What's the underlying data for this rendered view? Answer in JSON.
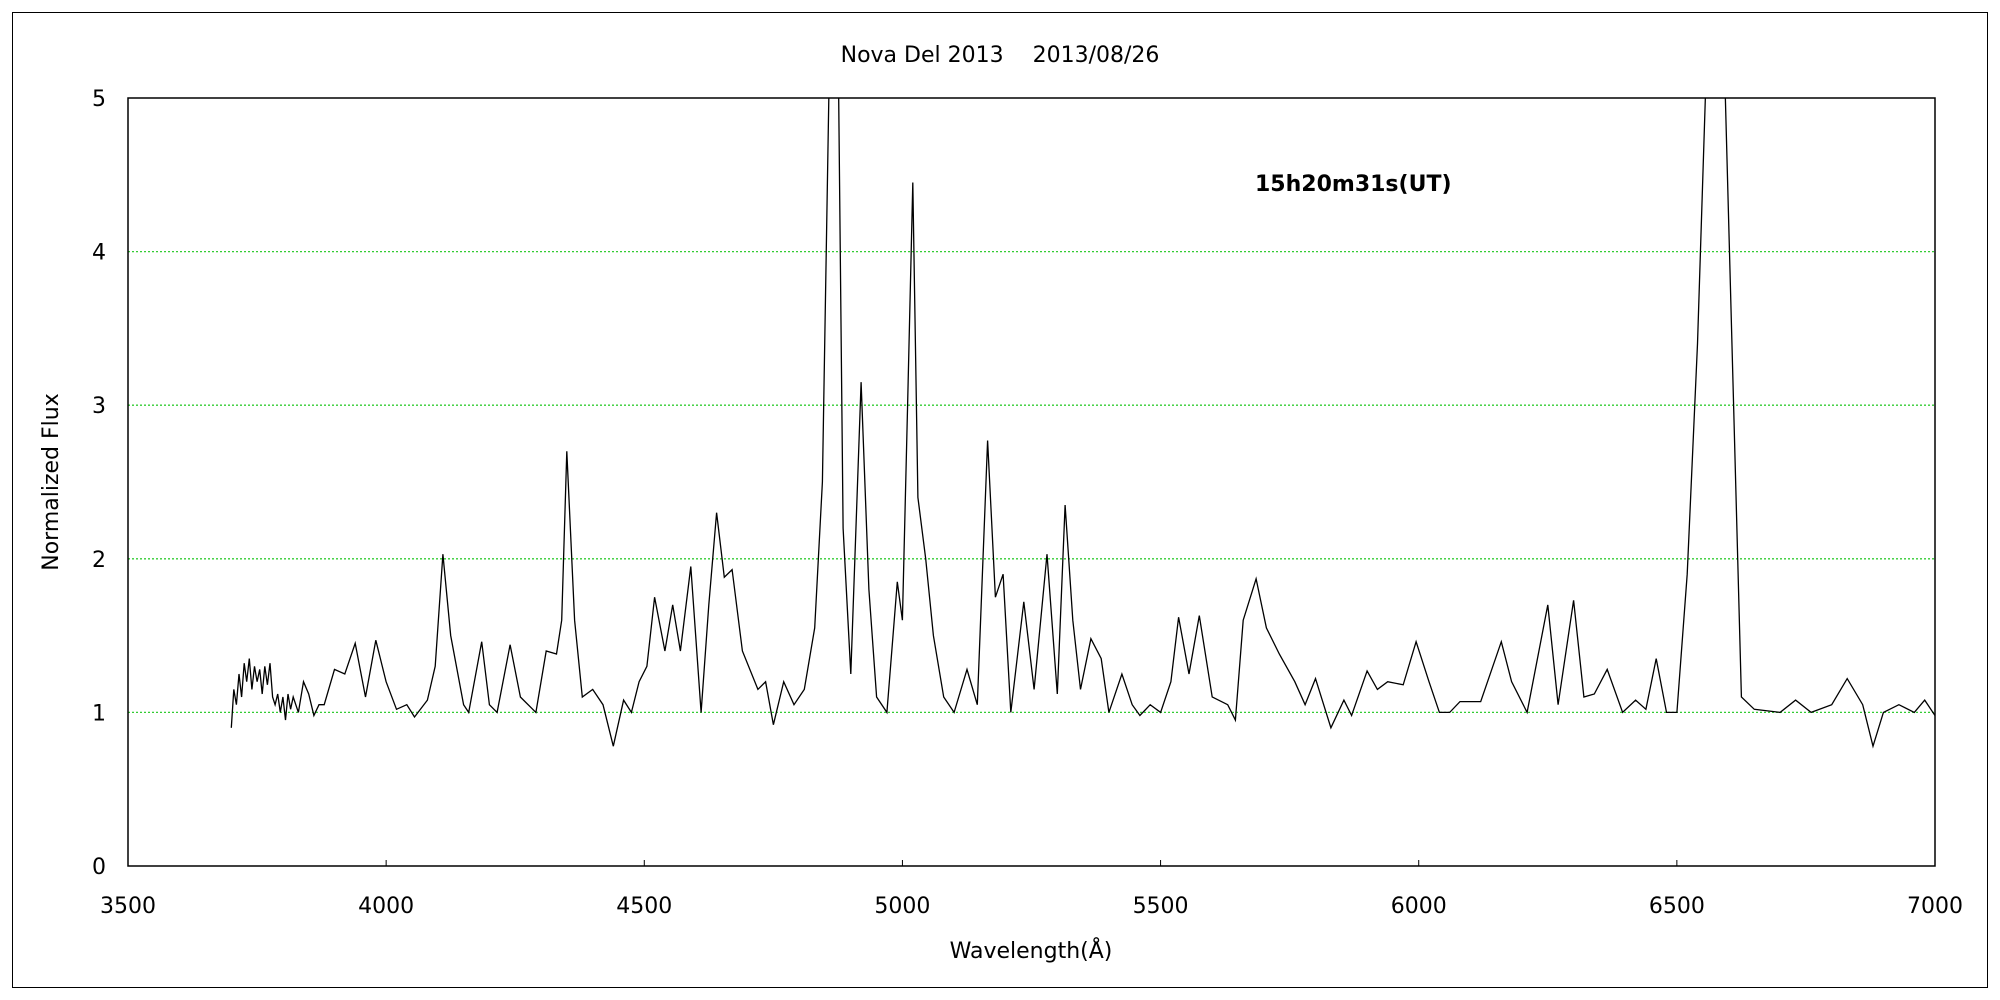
{
  "chart_data": {
    "type": "line",
    "title": "Nova Del 2013　 2013/08/26",
    "annotation": "15h20m31s(UT)",
    "xlabel": "Wavelength(Å)",
    "ylabel": "Normalized Flux",
    "xlim": [
      3500,
      7000
    ],
    "ylim": [
      0,
      5
    ],
    "xticks": [
      3500,
      4000,
      4500,
      5000,
      5500,
      6000,
      6500,
      7000
    ],
    "yticks": [
      0,
      1,
      2,
      3,
      4,
      5
    ],
    "grid": {
      "y": true,
      "x": false,
      "style": "dotted",
      "color": "#33cc33"
    },
    "line_color": "#000000",
    "series": [
      {
        "x": [
          3700,
          3705,
          3710,
          3715,
          3720,
          3725,
          3730,
          3735,
          3740,
          3745,
          3750,
          3755,
          3760,
          3765,
          3770,
          3775,
          3780,
          3785,
          3790,
          3795,
          3800,
          3805,
          3810,
          3815,
          3820,
          3830,
          3840,
          3850,
          3860,
          3870,
          3880,
          3900,
          3920,
          3940,
          3960,
          3980,
          4000,
          4020,
          4040,
          4055,
          4080,
          4095,
          4110,
          4125,
          4150,
          4160,
          4185,
          4200,
          4215,
          4240,
          4260,
          4290,
          4310,
          4330,
          4340,
          4350,
          4365,
          4380,
          4400,
          4420,
          4440,
          4460,
          4475,
          4490,
          4505,
          4520,
          4540,
          4555,
          4570,
          4590,
          4610,
          4625,
          4640,
          4655,
          4670,
          4690,
          4720,
          4735,
          4750,
          4770,
          4790,
          4810,
          4830,
          4845,
          4860,
          4875,
          4885,
          4900,
          4920,
          4935,
          4950,
          4970,
          4990,
          5000,
          5010,
          5020,
          5030,
          5045,
          5060,
          5080,
          5100,
          5125,
          5145,
          5165,
          5180,
          5195,
          5210,
          5235,
          5255,
          5280,
          5300,
          5315,
          5330,
          5345,
          5365,
          5385,
          5400,
          5425,
          5445,
          5460,
          5480,
          5500,
          5520,
          5535,
          5555,
          5575,
          5600,
          5630,
          5645,
          5660,
          5685,
          5705,
          5730,
          5760,
          5780,
          5800,
          5830,
          5855,
          5870,
          5900,
          5920,
          5940,
          5970,
          5995,
          6020,
          6040,
          6060,
          6080,
          6120,
          6160,
          6180,
          6210,
          6250,
          6270,
          6300,
          6320,
          6340,
          6365,
          6395,
          6420,
          6440,
          6460,
          6480,
          6500,
          6520,
          6540,
          6560,
          6590,
          6610,
          6625,
          6650,
          6700,
          6730,
          6760,
          6800,
          6830,
          6860,
          6880,
          6900,
          6930,
          6960,
          6980,
          7000
        ],
        "y": [
          0.9,
          1.15,
          1.05,
          1.25,
          1.1,
          1.32,
          1.2,
          1.35,
          1.15,
          1.3,
          1.2,
          1.28,
          1.12,
          1.3,
          1.18,
          1.32,
          1.1,
          1.05,
          1.12,
          1.0,
          1.1,
          0.95,
          1.12,
          1.02,
          1.1,
          1.0,
          1.2,
          1.12,
          0.98,
          1.05,
          1.05,
          1.28,
          1.25,
          1.45,
          1.1,
          1.47,
          1.2,
          1.02,
          1.05,
          0.97,
          1.08,
          1.3,
          2.03,
          1.5,
          1.05,
          1.0,
          1.46,
          1.05,
          1.0,
          1.44,
          1.1,
          1.0,
          1.4,
          1.38,
          1.6,
          2.7,
          1.6,
          1.1,
          1.15,
          1.05,
          0.78,
          1.08,
          1.0,
          1.2,
          1.3,
          1.75,
          1.4,
          1.7,
          1.4,
          1.95,
          1.0,
          1.7,
          2.3,
          1.88,
          1.93,
          1.4,
          1.15,
          1.2,
          0.92,
          1.2,
          1.05,
          1.15,
          1.55,
          2.5,
          5.5,
          5.5,
          2.2,
          1.25,
          3.15,
          1.8,
          1.1,
          1.0,
          1.85,
          1.6,
          3.0,
          4.45,
          2.4,
          2.0,
          1.5,
          1.1,
          1.0,
          1.28,
          1.05,
          2.77,
          1.75,
          1.9,
          1.0,
          1.72,
          1.15,
          2.03,
          1.12,
          2.35,
          1.6,
          1.15,
          1.48,
          1.35,
          1.0,
          1.25,
          1.05,
          0.98,
          1.05,
          1.0,
          1.2,
          1.62,
          1.25,
          1.63,
          1.1,
          1.05,
          0.95,
          1.6,
          1.87,
          1.55,
          1.38,
          1.2,
          1.05,
          1.22,
          0.9,
          1.08,
          0.98,
          1.27,
          1.15,
          1.2,
          1.18,
          1.46,
          1.2,
          1.0,
          1.0,
          1.07,
          1.07,
          1.46,
          1.2,
          1.0,
          1.7,
          1.05,
          1.73,
          1.1,
          1.12,
          1.28,
          1.0,
          1.08,
          1.02,
          1.35,
          1.0,
          1.0,
          1.9,
          3.4,
          5.5,
          5.5,
          3.0,
          1.1,
          1.02,
          1.0,
          1.08,
          1.0,
          1.05,
          1.22,
          1.05,
          0.78,
          1.0,
          1.05,
          1.0,
          1.08,
          0.98
        ]
      }
    ]
  }
}
